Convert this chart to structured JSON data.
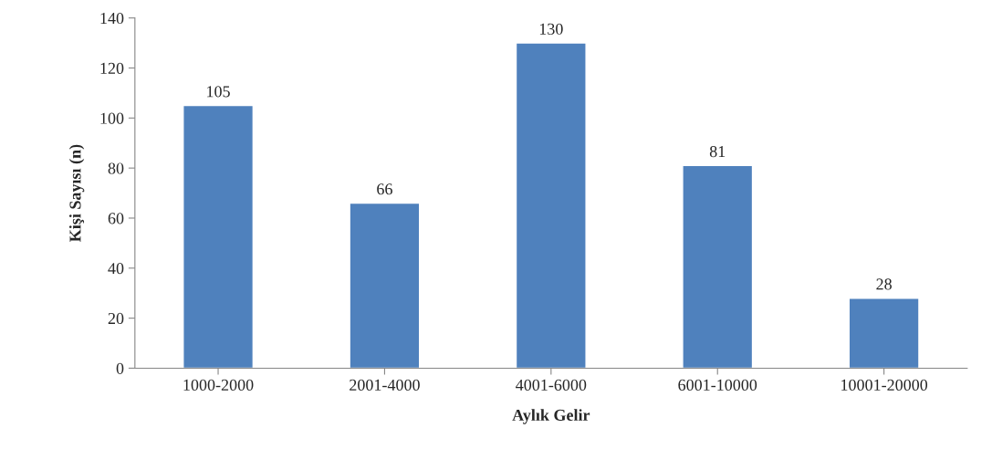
{
  "chart_data": {
    "type": "bar",
    "xlabel": "Aylık Gelir",
    "ylabel": "Kişi Sayısı (n)",
    "categories": [
      "1000-2000",
      "2001-4000",
      "4001-6000",
      "6001-10000",
      "10001-20000"
    ],
    "values": [
      105,
      66,
      130,
      81,
      28
    ],
    "color": "#4f81bd",
    "ylim": [
      0,
      140
    ],
    "yticks": [
      0,
      20,
      40,
      60,
      80,
      100,
      120,
      140
    ],
    "grid": false,
    "data_labels": true
  }
}
